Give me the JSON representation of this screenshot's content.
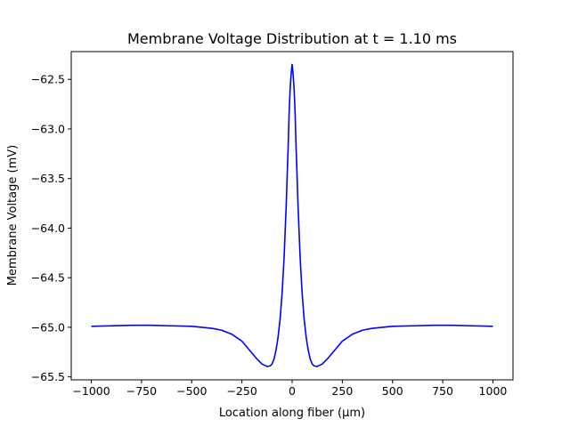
{
  "chart_data": {
    "type": "line",
    "title": "Membrane Voltage Distribution at t = 1.10 ms",
    "xlabel": "Location along fiber (µm)",
    "ylabel": "Membrane Voltage (mV)",
    "xlim": [
      -1100,
      1100
    ],
    "ylim": [
      -65.53,
      -62.22
    ],
    "xticks": [
      -1000,
      -750,
      -500,
      -250,
      0,
      250,
      500,
      750,
      1000
    ],
    "xtick_labels": [
      "−1000",
      "−750",
      "−500",
      "−250",
      "0",
      "250",
      "500",
      "750",
      "1000"
    ],
    "yticks": [
      -62.5,
      -63.0,
      -63.5,
      -64.0,
      -64.5,
      -65.0,
      -65.5
    ],
    "ytick_labels": [
      "−62.5",
      "−63.0",
      "−63.5",
      "−64.0",
      "−64.5",
      "−65.0",
      "−65.5"
    ],
    "grid": false,
    "series": [
      {
        "color": "#0000ff",
        "x": [
          -1000,
          -900,
          -800,
          -700,
          -600,
          -500,
          -450,
          -400,
          -350,
          -300,
          -250,
          -200,
          -175,
          -150,
          -125,
          -110,
          -100,
          -90,
          -80,
          -70,
          -60,
          -50,
          -40,
          -30,
          -20,
          -15,
          -10,
          -5,
          0,
          5,
          10,
          15,
          20,
          30,
          40,
          50,
          60,
          70,
          80,
          90,
          100,
          110,
          125,
          150,
          175,
          200,
          250,
          300,
          350,
          400,
          450,
          500,
          600,
          700,
          800,
          900,
          1000
        ],
        "y": [
          -64.99,
          -64.985,
          -64.98,
          -64.98,
          -64.985,
          -64.99,
          -65.0,
          -65.01,
          -65.03,
          -65.07,
          -65.14,
          -65.26,
          -65.32,
          -65.37,
          -65.395,
          -65.39,
          -65.37,
          -65.32,
          -65.23,
          -65.1,
          -64.92,
          -64.66,
          -64.3,
          -63.8,
          -63.2,
          -62.85,
          -62.6,
          -62.45,
          -62.35,
          -62.45,
          -62.6,
          -62.85,
          -63.2,
          -63.8,
          -64.3,
          -64.66,
          -64.92,
          -65.1,
          -65.23,
          -65.32,
          -65.37,
          -65.39,
          -65.395,
          -65.37,
          -65.32,
          -65.26,
          -65.14,
          -65.07,
          -65.03,
          -65.01,
          -65.0,
          -64.99,
          -64.985,
          -64.98,
          -64.98,
          -64.985,
          -64.99
        ]
      }
    ]
  }
}
